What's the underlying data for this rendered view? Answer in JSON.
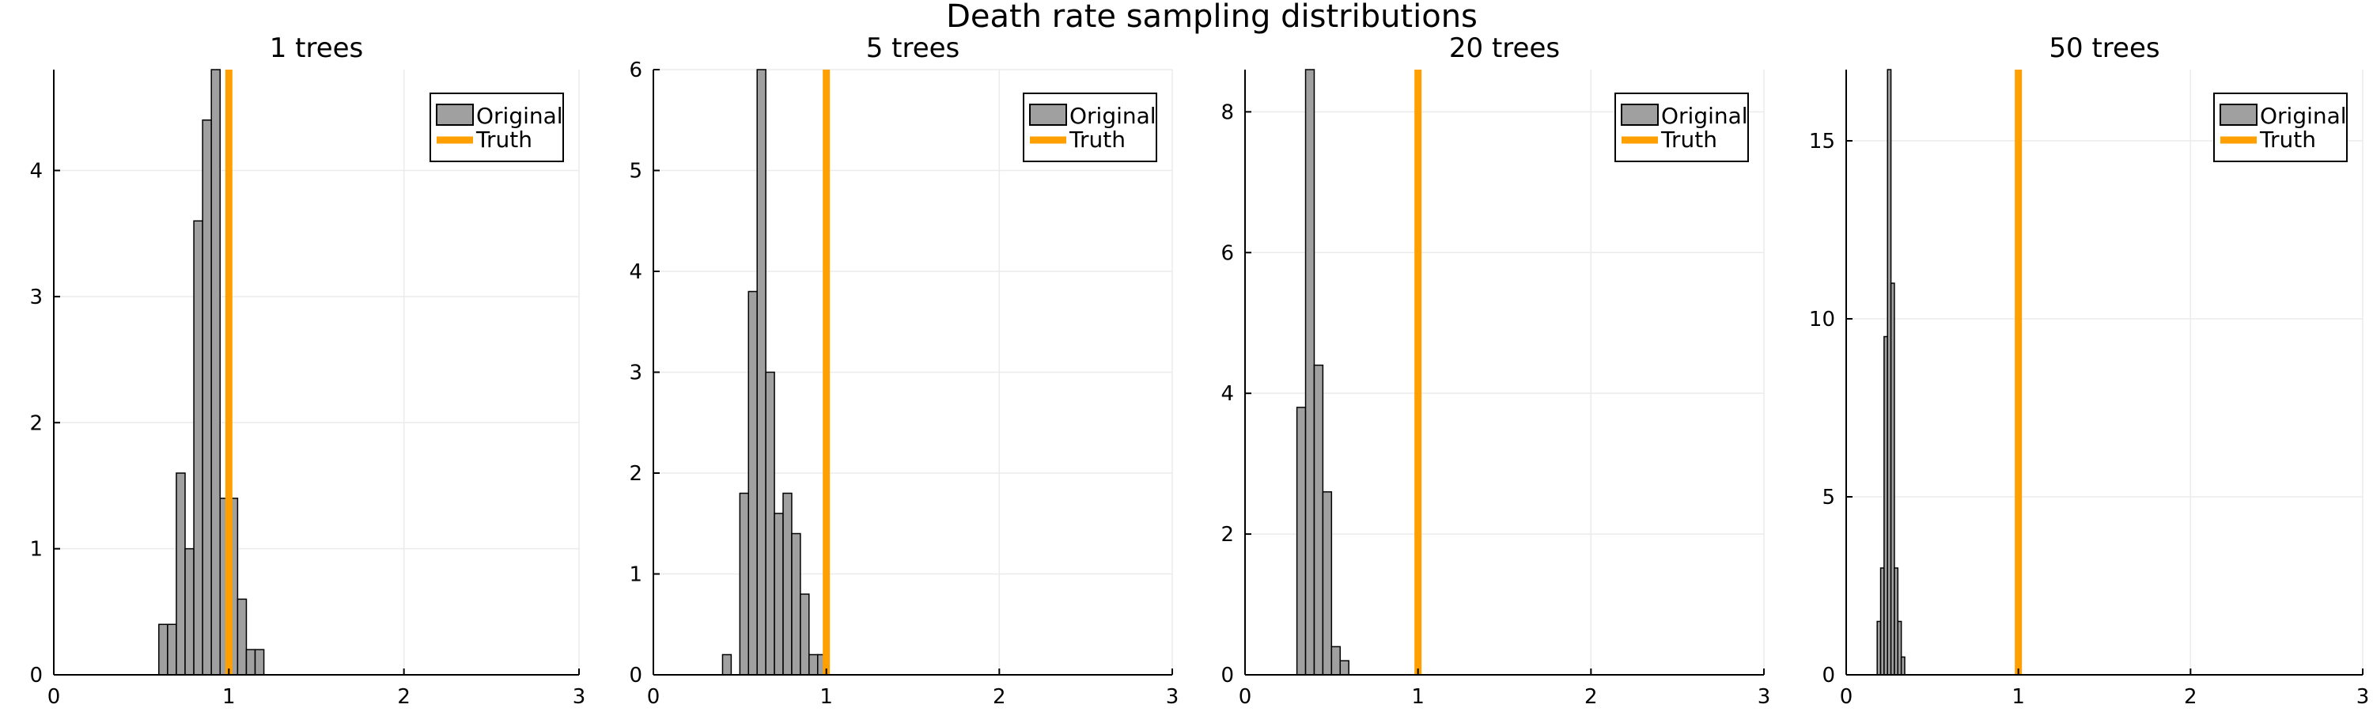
{
  "suptitle": "Death rate sampling distributions",
  "colors": {
    "bar_fill": "#a0a0a0",
    "bar_stroke": "#000000",
    "truth_line": "#ff9f00",
    "grid": "#ebebeb",
    "axis": "#000000"
  },
  "chart_data": [
    {
      "type": "bar",
      "title": "1 trees",
      "xlabel": "",
      "ylabel": "",
      "xlim": [
        0,
        3
      ],
      "ylim": [
        0,
        4.8
      ],
      "xticks": [
        0,
        1,
        2,
        3
      ],
      "yticks": [
        0,
        1,
        2,
        3,
        4
      ],
      "grid": true,
      "legend_position": "top-right",
      "series": [
        {
          "name": "Original",
          "kind": "histogram",
          "bin_width": 0.05,
          "bins": [
            {
              "x0": 0.6,
              "x1": 0.65,
              "value": 0.4
            },
            {
              "x0": 0.65,
              "x1": 0.7,
              "value": 0.4
            },
            {
              "x0": 0.7,
              "x1": 0.75,
              "value": 1.6
            },
            {
              "x0": 0.75,
              "x1": 0.8,
              "value": 1.0
            },
            {
              "x0": 0.8,
              "x1": 0.85,
              "value": 3.6
            },
            {
              "x0": 0.85,
              "x1": 0.9,
              "value": 4.4
            },
            {
              "x0": 0.9,
              "x1": 0.95,
              "value": 4.8
            },
            {
              "x0": 0.95,
              "x1": 1.0,
              "value": 1.4
            },
            {
              "x0": 1.0,
              "x1": 1.05,
              "value": 1.4
            },
            {
              "x0": 1.05,
              "x1": 1.1,
              "value": 0.6
            },
            {
              "x0": 1.1,
              "x1": 1.15,
              "value": 0.2
            },
            {
              "x0": 1.15,
              "x1": 1.2,
              "value": 0.2
            }
          ]
        },
        {
          "name": "Truth",
          "kind": "vline",
          "x": 1.0
        }
      ]
    },
    {
      "type": "bar",
      "title": "5 trees",
      "xlabel": "",
      "ylabel": "",
      "xlim": [
        0,
        3
      ],
      "ylim": [
        0,
        6
      ],
      "xticks": [
        0,
        1,
        2,
        3
      ],
      "yticks": [
        0,
        1,
        2,
        3,
        4,
        5,
        6
      ],
      "grid": true,
      "legend_position": "top-right",
      "series": [
        {
          "name": "Original",
          "kind": "histogram",
          "bin_width": 0.05,
          "bins": [
            {
              "x0": 0.4,
              "x1": 0.45,
              "value": 0.2
            },
            {
              "x0": 0.45,
              "x1": 0.5,
              "value": 0.0
            },
            {
              "x0": 0.5,
              "x1": 0.55,
              "value": 1.8
            },
            {
              "x0": 0.55,
              "x1": 0.6,
              "value": 3.8
            },
            {
              "x0": 0.6,
              "x1": 0.65,
              "value": 6.0
            },
            {
              "x0": 0.65,
              "x1": 0.7,
              "value": 3.0
            },
            {
              "x0": 0.7,
              "x1": 0.75,
              "value": 1.6
            },
            {
              "x0": 0.75,
              "x1": 0.8,
              "value": 1.8
            },
            {
              "x0": 0.8,
              "x1": 0.85,
              "value": 1.4
            },
            {
              "x0": 0.85,
              "x1": 0.9,
              "value": 0.8
            },
            {
              "x0": 0.9,
              "x1": 0.95,
              "value": 0.2
            },
            {
              "x0": 0.95,
              "x1": 1.0,
              "value": 0.2
            }
          ]
        },
        {
          "name": "Truth",
          "kind": "vline",
          "x": 1.0
        }
      ]
    },
    {
      "type": "bar",
      "title": "20 trees",
      "xlabel": "",
      "ylabel": "",
      "xlim": [
        0,
        3
      ],
      "ylim": [
        0,
        8.6
      ],
      "xticks": [
        0,
        1,
        2,
        3
      ],
      "yticks": [
        0,
        2,
        4,
        6,
        8
      ],
      "grid": true,
      "legend_position": "top-right",
      "series": [
        {
          "name": "Original",
          "kind": "histogram",
          "bin_width": 0.05,
          "bins": [
            {
              "x0": 0.3,
              "x1": 0.35,
              "value": 3.8
            },
            {
              "x0": 0.35,
              "x1": 0.4,
              "value": 8.6
            },
            {
              "x0": 0.4,
              "x1": 0.45,
              "value": 4.4
            },
            {
              "x0": 0.45,
              "x1": 0.5,
              "value": 2.6
            },
            {
              "x0": 0.5,
              "x1": 0.55,
              "value": 0.4
            },
            {
              "x0": 0.55,
              "x1": 0.6,
              "value": 0.2
            }
          ]
        },
        {
          "name": "Truth",
          "kind": "vline",
          "x": 1.0
        }
      ]
    },
    {
      "type": "bar",
      "title": "50 trees",
      "xlabel": "",
      "ylabel": "",
      "xlim": [
        0,
        3
      ],
      "ylim": [
        0,
        17
      ],
      "xticks": [
        0,
        1,
        2,
        3
      ],
      "yticks": [
        0,
        5,
        10,
        15
      ],
      "grid": true,
      "legend_position": "top-right",
      "series": [
        {
          "name": "Original",
          "kind": "histogram",
          "bin_width": 0.02,
          "bins": [
            {
              "x0": 0.18,
              "x1": 0.2,
              "value": 1.5
            },
            {
              "x0": 0.2,
              "x1": 0.22,
              "value": 3.0
            },
            {
              "x0": 0.22,
              "x1": 0.24,
              "value": 9.5
            },
            {
              "x0": 0.24,
              "x1": 0.26,
              "value": 17.0
            },
            {
              "x0": 0.26,
              "x1": 0.28,
              "value": 11.0
            },
            {
              "x0": 0.28,
              "x1": 0.3,
              "value": 3.0
            },
            {
              "x0": 0.3,
              "x1": 0.32,
              "value": 1.5
            },
            {
              "x0": 0.32,
              "x1": 0.34,
              "value": 0.5
            }
          ]
        },
        {
          "name": "Truth",
          "kind": "vline",
          "x": 1.0
        }
      ]
    }
  ]
}
